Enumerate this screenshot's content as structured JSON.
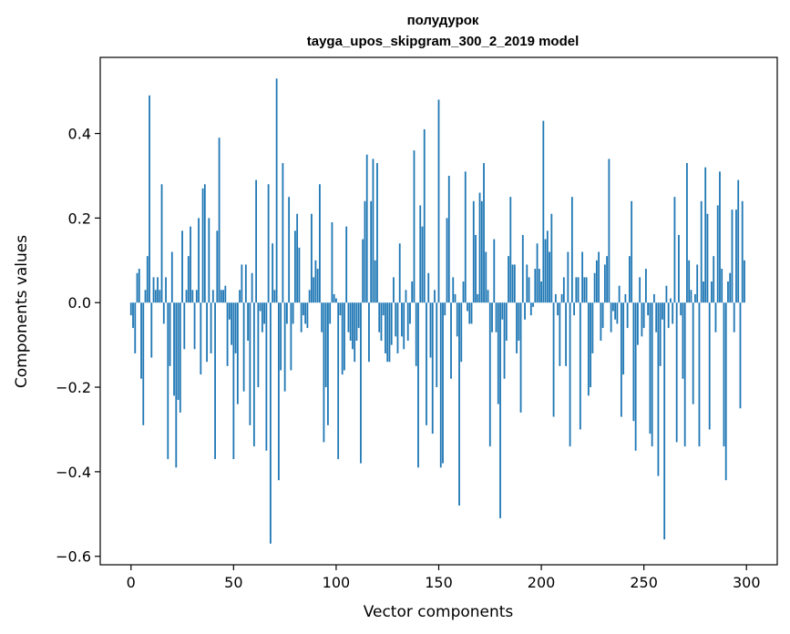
{
  "chart_data": {
    "type": "bar",
    "title": "полудурок",
    "subtitle": "tayga_upos_skipgram_300_2_2019 model",
    "xlabel": "Vector components",
    "ylabel": "Components values",
    "xlim": [
      -15,
      315
    ],
    "ylim": [
      -0.62,
      0.58
    ],
    "x_ticks": [
      0,
      50,
      100,
      150,
      200,
      250,
      300
    ],
    "x_tick_labels": [
      "0",
      "50",
      "100",
      "150",
      "200",
      "250",
      "300"
    ],
    "y_ticks": [
      -0.6,
      -0.4,
      -0.2,
      0.0,
      0.2,
      0.4
    ],
    "y_tick_labels": [
      "−0.6",
      "−0.4",
      "−0.2",
      "0.0",
      "0.2",
      "0.4"
    ],
    "grid": false,
    "bar_color": "#1f77b4",
    "values": [
      -0.03,
      -0.06,
      -0.12,
      0.07,
      0.08,
      -0.18,
      -0.29,
      0.03,
      0.11,
      0.49,
      -0.13,
      0.06,
      0.03,
      0.06,
      0.03,
      0.28,
      -0.05,
      0.06,
      -0.37,
      -0.15,
      0.12,
      -0.22,
      -0.39,
      -0.23,
      -0.26,
      0.17,
      -0.11,
      0.03,
      0.11,
      0.18,
      0.03,
      -0.11,
      0.03,
      0.2,
      -0.17,
      0.27,
      0.28,
      -0.14,
      0.2,
      -0.12,
      0.03,
      -0.37,
      0.17,
      0.39,
      0.03,
      0.03,
      0.04,
      -0.15,
      -0.04,
      -0.1,
      -0.37,
      -0.12,
      -0.24,
      0.03,
      0.09,
      -0.21,
      0.09,
      -0.09,
      -0.29,
      0.07,
      -0.34,
      0.29,
      -0.2,
      -0.02,
      -0.07,
      -0.05,
      -0.35,
      0.28,
      -0.57,
      0.14,
      0.03,
      0.53,
      -0.42,
      -0.16,
      0.33,
      -0.21,
      -0.05,
      0.25,
      -0.16,
      -0.05,
      0.17,
      0.21,
      0.13,
      -0.07,
      -0.03,
      -0.05,
      -0.06,
      0.03,
      0.21,
      0.06,
      0.1,
      0.08,
      0.28,
      -0.07,
      -0.33,
      -0.2,
      -0.29,
      -0.05,
      0.19,
      0.02,
      0.01,
      -0.37,
      -0.03,
      -0.17,
      -0.16,
      0.18,
      -0.07,
      -0.09,
      -0.11,
      -0.14,
      -0.09,
      -0.06,
      -0.38,
      0.15,
      0.24,
      0.35,
      -0.14,
      0.24,
      0.34,
      0.1,
      0.33,
      -0.07,
      -0.09,
      -0.03,
      -0.12,
      -0.14,
      -0.14,
      -0.1,
      0.06,
      -0.08,
      -0.12,
      0.14,
      -0.08,
      -0.11,
      0.03,
      -0.09,
      -0.05,
      0.05,
      0.36,
      -0.15,
      -0.39,
      0.23,
      0.18,
      0.41,
      -0.29,
      0.07,
      -0.13,
      -0.31,
      0.03,
      -0.2,
      0.48,
      -0.39,
      -0.38,
      -0.03,
      0.2,
      0.3,
      -0.18,
      0.06,
      0.02,
      -0.08,
      -0.48,
      -0.14,
      0.05,
      0.31,
      -0.02,
      -0.05,
      -0.05,
      0.24,
      0.16,
      0.02,
      0.26,
      0.24,
      0.33,
      0.12,
      0.03,
      -0.34,
      -0.07,
      0.15,
      -0.07,
      -0.24,
      -0.51,
      -0.04,
      -0.18,
      -0.09,
      0.11,
      0.25,
      0.09,
      0.09,
      -0.12,
      -0.09,
      -0.26,
      0.16,
      -0.04,
      0.09,
      0.06,
      -0.03,
      -0.01,
      0.08,
      0.14,
      0.08,
      0.05,
      0.43,
      0.15,
      0.17,
      0.12,
      0.21,
      -0.27,
      0.02,
      -0.03,
      -0.15,
      0.02,
      0.06,
      -0.15,
      0.12,
      -0.34,
      0.25,
      -0.03,
      0.06,
      0.06,
      -0.3,
      0.12,
      0.06,
      0.06,
      -0.22,
      -0.2,
      -0.12,
      0.07,
      0.1,
      0.12,
      -0.09,
      -0.06,
      0.09,
      0.11,
      0.34,
      -0.07,
      -0.02,
      -0.04,
      -0.05,
      0.04,
      -0.27,
      -0.17,
      0.02,
      -0.06,
      0.11,
      0.24,
      -0.28,
      -0.35,
      -0.1,
      0.06,
      -0.08,
      -0.06,
      0.08,
      -0.03,
      -0.31,
      -0.34,
      0.02,
      -0.07,
      -0.41,
      -0.15,
      -0.04,
      -0.56,
      0.04,
      -0.06,
      0.01,
      -0.05,
      0.25,
      -0.33,
      0.16,
      -0.03,
      -0.18,
      -0.34,
      0.33,
      0.1,
      0.03,
      -0.24,
      0.02,
      0.09,
      -0.34,
      0.24,
      0.05,
      0.32,
      0.21,
      -0.3,
      0.05,
      0.11,
      -0.07,
      0.23,
      0.31,
      0.08,
      -0.34,
      -0.42,
      0.05,
      0.07,
      0.22,
      -0.07,
      0.22,
      0.29,
      -0.25,
      0.24,
      0.1
    ]
  }
}
